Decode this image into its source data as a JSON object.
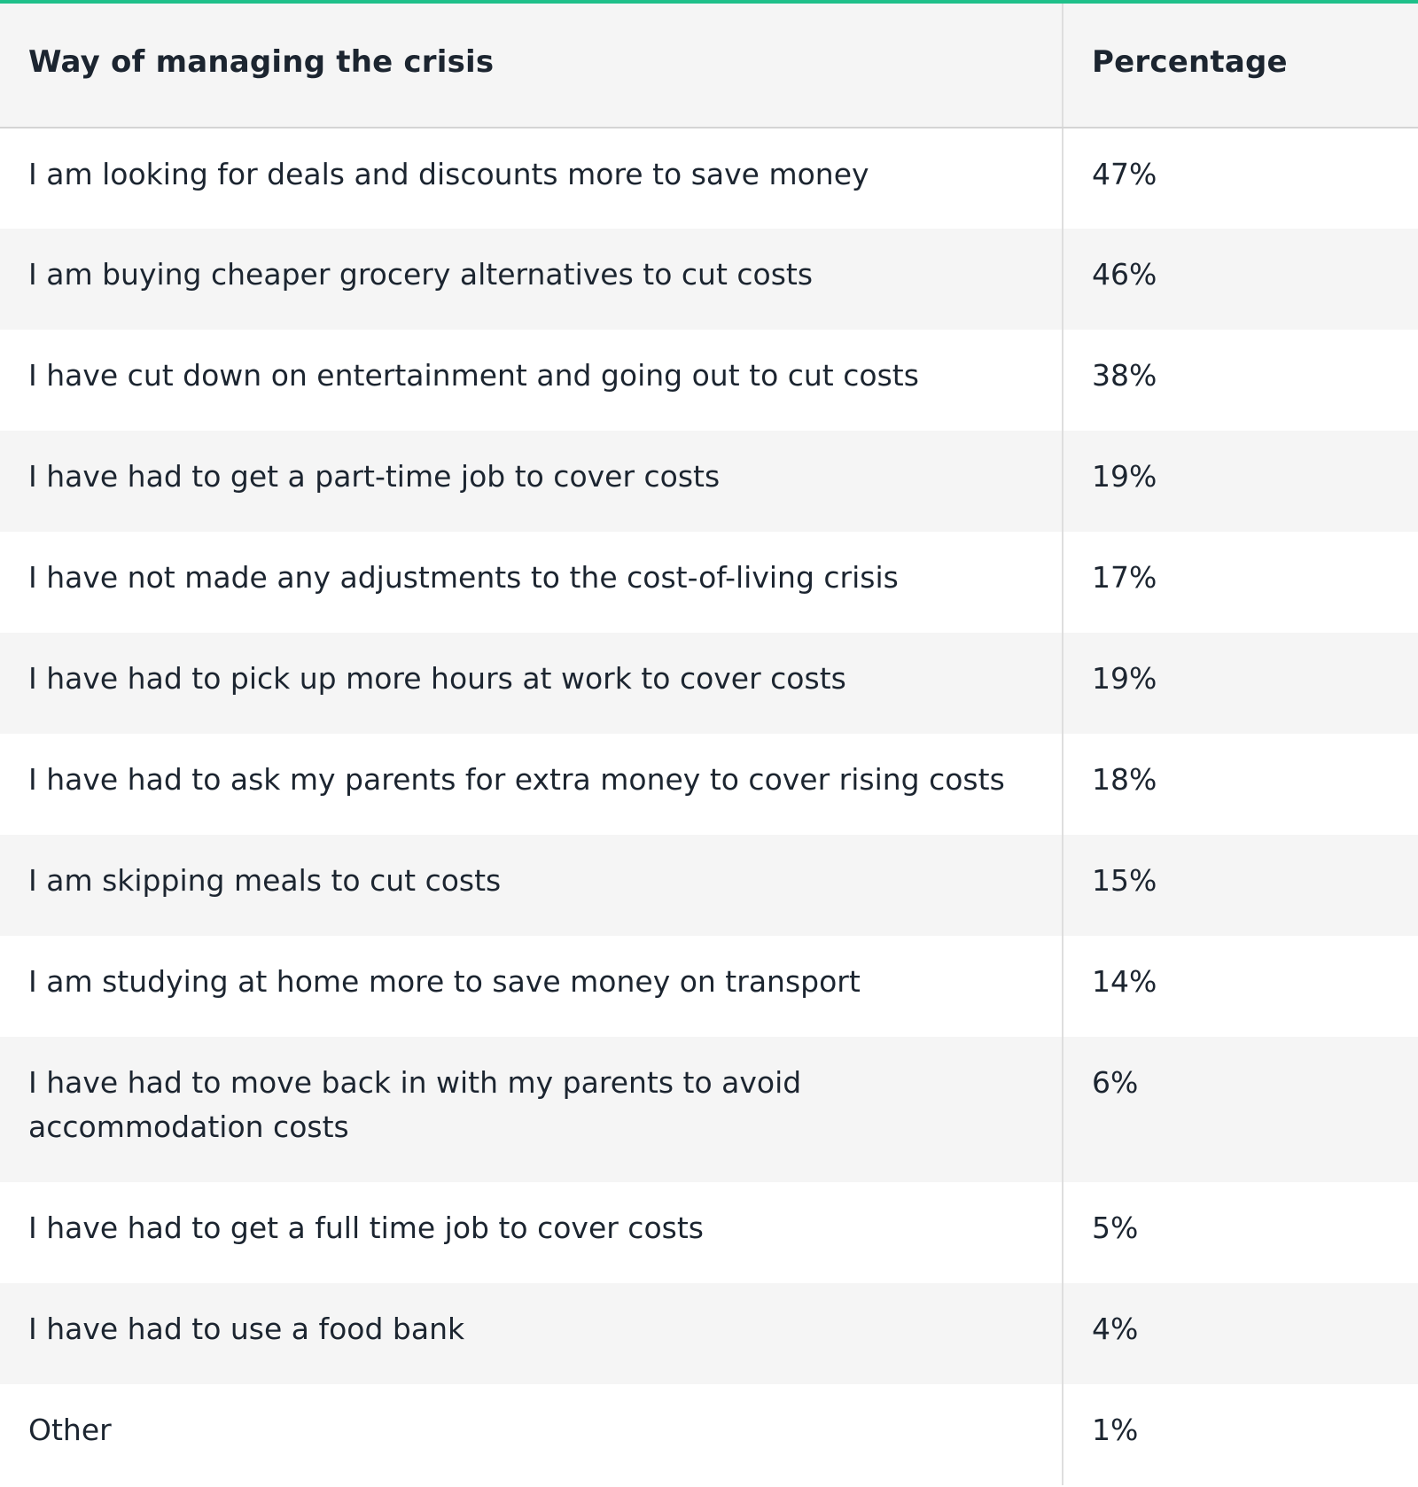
{
  "table": {
    "headers": [
      "Way of managing the crisis",
      "Percentage"
    ],
    "rows": [
      {
        "label": "I am looking for deals and discounts more to save money",
        "value": "47%"
      },
      {
        "label": "I am buying cheaper grocery alternatives to cut costs",
        "value": "46%"
      },
      {
        "label": "I have cut down on entertainment and going out to cut costs",
        "value": "38%"
      },
      {
        "label": "I have had to get a part-time job to cover costs",
        "value": "19%"
      },
      {
        "label": "I have not made any adjustments to the cost-of-living crisis",
        "value": "17%"
      },
      {
        "label": "I have had to pick up more hours at work to cover costs",
        "value": "19%"
      },
      {
        "label": "I have had to ask my parents for extra money to cover rising costs",
        "value": "18%"
      },
      {
        "label": "I am skipping meals to cut costs",
        "value": "15%"
      },
      {
        "label": "I am studying at home more to save money on transport",
        "value": "14%"
      },
      {
        "label": "I have had to move back in with my parents to avoid accommodation costs",
        "value": "6%"
      },
      {
        "label": "I have had to get a full time job to cover costs",
        "value": "5%"
      },
      {
        "label": "I have had to use a food bank",
        "value": "4%"
      },
      {
        "label": "Other",
        "value": "1%"
      }
    ]
  },
  "colors": {
    "accent": "#1fc08a",
    "stripe": "#f5f5f5",
    "text": "#1c2530",
    "divider": "#dedede"
  }
}
